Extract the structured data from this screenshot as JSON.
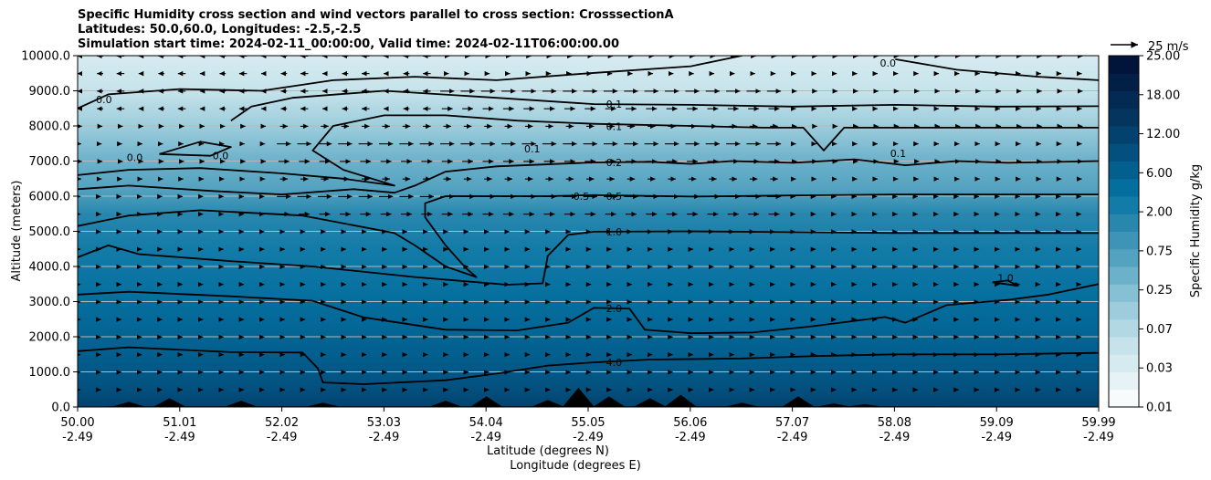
{
  "title_lines": [
    "Specific Humidity cross section and wind vectors parallel to cross section: CrosssectionA",
    "Latitudes: 50.0,60.0, Longitudes: -2.5,-2.5",
    "Simulation start time: 2024-02-11_00:00:00, Valid time: 2024-02-11T06:00:00.00"
  ],
  "chart_data": {
    "type": "contour",
    "ylabel": "Altitude (meters)",
    "xlabel_lat": "Latitude (degrees N)",
    "xlabel_lon": "Longitude (degrees E)",
    "xlim": [
      50.0,
      59.99
    ],
    "ylim": [
      0,
      10000
    ],
    "grid": "horizontal",
    "yticks": [
      "0.0",
      "1000.0",
      "2000.0",
      "3000.0",
      "4000.0",
      "5000.0",
      "6000.0",
      "7000.0",
      "8000.0",
      "9000.0",
      "10000.0"
    ],
    "xticks_lat": [
      "50.00",
      "51.01",
      "52.02",
      "53.03",
      "54.04",
      "55.05",
      "56.06",
      "57.07",
      "58.08",
      "59.09",
      "59.99"
    ],
    "xticks_lon": [
      "-2.49",
      "-2.49",
      "-2.49",
      "-2.49",
      "-2.49",
      "-2.49",
      "-2.49",
      "-2.49",
      "-2.49",
      "-2.49",
      "-2.49"
    ],
    "colorbar": {
      "label": "Specific Humidity g/kg",
      "ticks": [
        "0.01",
        "0.03",
        "0.07",
        "0.25",
        "0.75",
        "2.00",
        "6.00",
        "12.00",
        "18.00",
        "25.00"
      ],
      "levels": [
        0.01,
        0.02,
        0.03,
        0.05,
        0.07,
        0.1,
        0.15,
        0.25,
        0.5,
        0.75,
        1.0,
        2.0,
        4.0,
        6.0,
        9.0,
        12.0,
        15.0,
        18.0,
        21.0,
        25.0
      ],
      "colors": [
        "#f7fbfc",
        "#e6f2f5",
        "#d6ebf0",
        "#c6e3eb",
        "#b2d8e4",
        "#9dcddc",
        "#85c0d4",
        "#6cb1ca",
        "#53a2bf",
        "#3d94b7",
        "#2987ae",
        "#137ba7",
        "#046e9e",
        "#035f8e",
        "#03507e",
        "#03426e",
        "#03355f",
        "#022a52",
        "#021f45",
        "#01143a"
      ]
    },
    "wind_key": "25 m/s",
    "contour_labels": [
      {
        "text": "0.0",
        "x": 50.18,
        "y": 8750
      },
      {
        "text": "0.0",
        "x": 50.48,
        "y": 7100
      },
      {
        "text": "0.0",
        "x": 51.32,
        "y": 7150
      },
      {
        "text": "0.1",
        "x": 54.37,
        "y": 7350
      },
      {
        "text": "0.1",
        "x": 55.17,
        "y": 8620
      },
      {
        "text": "0.1",
        "x": 55.17,
        "y": 7990
      },
      {
        "text": "0.2",
        "x": 55.17,
        "y": 6960
      },
      {
        "text": "0.5",
        "x": 54.85,
        "y": 6000
      },
      {
        "text": "0.5",
        "x": 55.17,
        "y": 6000
      },
      {
        "text": "1.0",
        "x": 55.17,
        "y": 4990
      },
      {
        "text": "2.0",
        "x": 55.17,
        "y": 2810
      },
      {
        "text": "4.0",
        "x": 55.17,
        "y": 1270
      },
      {
        "text": "0.0",
        "x": 57.85,
        "y": 9790
      },
      {
        "text": "0.1",
        "x": 57.95,
        "y": 7220
      },
      {
        "text": "1.0",
        "x": 59.0,
        "y": 3670
      }
    ],
    "contours": [
      {
        "level": 4.0,
        "pts": [
          [
            50,
            1590
          ],
          [
            50.5,
            1700
          ],
          [
            51.5,
            1560
          ],
          [
            52.2,
            1550
          ],
          [
            52.35,
            1100
          ],
          [
            52.4,
            700
          ],
          [
            52.8,
            650
          ],
          [
            53.6,
            760
          ],
          [
            54.1,
            950
          ],
          [
            54.6,
            1180
          ],
          [
            55.05,
            1270
          ],
          [
            55.6,
            1350
          ],
          [
            56.5,
            1380
          ],
          [
            57.2,
            1450
          ],
          [
            58.0,
            1500
          ],
          [
            59.0,
            1500
          ],
          [
            59.99,
            1540
          ]
        ]
      },
      {
        "level": 2.0,
        "pts": [
          [
            50,
            3200
          ],
          [
            50.5,
            3280
          ],
          [
            51.5,
            3150
          ],
          [
            52.3,
            3020
          ],
          [
            52.8,
            2550
          ],
          [
            53.6,
            2200
          ],
          [
            54.3,
            2180
          ],
          [
            54.8,
            2400
          ],
          [
            55.05,
            2820
          ],
          [
            55.4,
            2800
          ],
          [
            55.55,
            2200
          ],
          [
            56.0,
            2100
          ],
          [
            56.6,
            2120
          ],
          [
            57.2,
            2300
          ],
          [
            57.9,
            2560
          ],
          [
            58.1,
            2400
          ],
          [
            58.5,
            2900
          ],
          [
            59.1,
            3050
          ],
          [
            59.5,
            3200
          ],
          [
            59.99,
            3500
          ]
        ]
      },
      {
        "level": 1.0,
        "pts": [
          [
            50,
            4260
          ],
          [
            50.3,
            4600
          ],
          [
            50.6,
            4350
          ],
          [
            51.5,
            4150
          ],
          [
            52.3,
            4000
          ],
          [
            53.3,
            3700
          ],
          [
            54.2,
            3480
          ],
          [
            54.55,
            3520
          ],
          [
            54.6,
            4300
          ],
          [
            54.8,
            4900
          ],
          [
            55.05,
            4990
          ],
          [
            56.0,
            5000
          ],
          [
            57.0,
            4980
          ],
          [
            58.0,
            4950
          ],
          [
            59.0,
            4950
          ],
          [
            59.99,
            4950
          ]
        ]
      },
      {
        "level": 1.0,
        "pts": [
          [
            58.95,
            3550
          ],
          [
            59.1,
            3600
          ],
          [
            59.2,
            3450
          ],
          [
            58.95,
            3550
          ]
        ]
      },
      {
        "level": 0.5,
        "pts": [
          [
            50,
            5150
          ],
          [
            50.5,
            5450
          ],
          [
            51.2,
            5600
          ],
          [
            52.2,
            5450
          ],
          [
            53.1,
            4950
          ],
          [
            53.3,
            4600
          ],
          [
            53.6,
            4000
          ],
          [
            53.9,
            3700
          ],
          [
            53.8,
            3950
          ],
          [
            53.6,
            4600
          ],
          [
            53.4,
            5400
          ],
          [
            53.4,
            5800
          ],
          [
            53.6,
            6000
          ],
          [
            54.6,
            6000
          ],
          [
            55.05,
            6030
          ],
          [
            56.0,
            5990
          ],
          [
            57.0,
            6020
          ],
          [
            58.0,
            6050
          ],
          [
            59.0,
            6050
          ],
          [
            59.99,
            6050
          ]
        ]
      },
      {
        "level": 0.2,
        "pts": [
          [
            50,
            6200
          ],
          [
            50.5,
            6300
          ],
          [
            51.3,
            6150
          ],
          [
            52.0,
            6050
          ],
          [
            52.7,
            6200
          ],
          [
            53.1,
            6100
          ],
          [
            53.3,
            6300
          ],
          [
            53.6,
            6700
          ],
          [
            54.1,
            6850
          ],
          [
            55.05,
            6960
          ],
          [
            55.6,
            6980
          ],
          [
            56.0,
            6920
          ],
          [
            56.4,
            7000
          ],
          [
            57.0,
            6950
          ],
          [
            57.6,
            7050
          ],
          [
            58.1,
            6880
          ],
          [
            58.6,
            7000
          ],
          [
            59.1,
            6950
          ],
          [
            59.99,
            7000
          ]
        ]
      },
      {
        "level": 0.1,
        "pts": [
          [
            50,
            6600
          ],
          [
            50.5,
            6750
          ],
          [
            51.2,
            6800
          ],
          [
            52.0,
            6650
          ],
          [
            52.6,
            6500
          ],
          [
            53.1,
            6300
          ],
          [
            52.6,
            6750
          ],
          [
            52.3,
            7300
          ],
          [
            52.5,
            8000
          ],
          [
            53.0,
            8300
          ],
          [
            53.6,
            8300
          ],
          [
            54.3,
            8150
          ],
          [
            55.05,
            8060
          ],
          [
            56.0,
            8000
          ],
          [
            56.7,
            7950
          ],
          [
            57.1,
            7950
          ],
          [
            57.3,
            7300
          ],
          [
            57.5,
            7950
          ],
          [
            58.0,
            7950
          ],
          [
            58.5,
            7950
          ],
          [
            59.0,
            7950
          ],
          [
            59.99,
            7950
          ]
        ]
      },
      {
        "level": 0.1,
        "pts": [
          [
            51.5,
            8150
          ],
          [
            51.7,
            8550
          ],
          [
            52.1,
            8800
          ],
          [
            53.0,
            9000
          ],
          [
            54.1,
            8800
          ],
          [
            55.05,
            8620
          ],
          [
            56.0,
            8600
          ],
          [
            57.0,
            8550
          ],
          [
            58.0,
            8600
          ],
          [
            59.0,
            8550
          ],
          [
            59.99,
            8560
          ]
        ]
      },
      {
        "level": 0.0,
        "pts": [
          [
            50,
            8500
          ],
          [
            50.3,
            8900
          ],
          [
            51.0,
            9050
          ],
          [
            51.8,
            9000
          ],
          [
            52.5,
            9300
          ],
          [
            53.3,
            9400
          ],
          [
            54.1,
            9300
          ],
          [
            55.0,
            9500
          ],
          [
            56.0,
            9700
          ],
          [
            56.5,
            10000
          ]
        ]
      },
      {
        "level": 0.0,
        "pts": [
          [
            58.0,
            9900
          ],
          [
            58.6,
            9600
          ],
          [
            59.4,
            9400
          ],
          [
            59.99,
            9300
          ]
        ]
      },
      {
        "level": 0.0,
        "pts": [
          [
            50.8,
            7200
          ],
          [
            51.2,
            7550
          ],
          [
            51.5,
            7400
          ],
          [
            51.3,
            7150
          ],
          [
            50.8,
            7200
          ]
        ]
      }
    ]
  }
}
